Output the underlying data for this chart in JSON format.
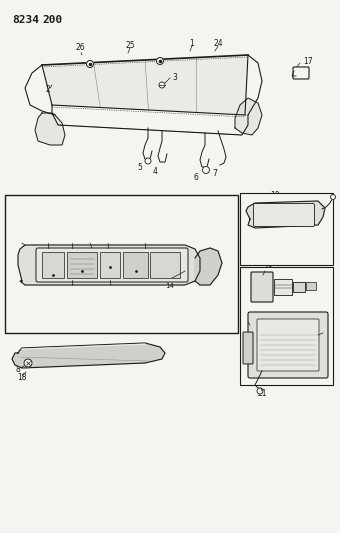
{
  "title1": "8234",
  "title2": "200",
  "bg_color": "#f5f5f0",
  "line_color": "#1a1a1a",
  "fig_width": 3.4,
  "fig_height": 5.33,
  "dpi": 100
}
